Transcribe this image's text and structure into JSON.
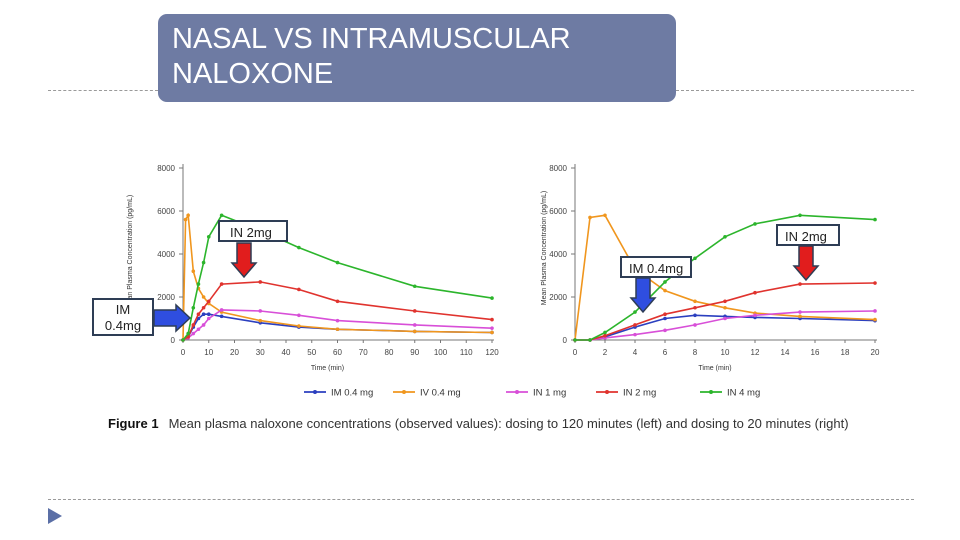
{
  "slide": {
    "title": "NASAL VS INTRAMUSCULAR NALOXONE",
    "callouts": {
      "left_in": "IN 2mg",
      "left_im": "IM 0.4mg",
      "right_in": "IN 2mg",
      "right_im": "IM 0.4mg"
    },
    "caption": {
      "label": "Figure 1",
      "text": "Mean plasma naloxone concentrations (observed values): dosing to 120 minutes (left) and dosing to 20 minutes (right)"
    },
    "colors": {
      "title_bg": "#6e7ba3",
      "red_arrow": "#e11d1d",
      "blue_arrow": "#2f4ee0"
    }
  },
  "chart_data": [
    {
      "type": "line",
      "xlabel": "Time (min)",
      "ylabel": "Mean Plasma Concentration (pg/mL)",
      "xlim": [
        0,
        120
      ],
      "ylim": [
        0,
        8000
      ],
      "xticks": [
        0,
        10,
        20,
        30,
        40,
        50,
        60,
        70,
        80,
        90,
        100,
        110,
        120
      ],
      "yticks": [
        0,
        2000,
        4000,
        6000,
        8000
      ],
      "legend": "bottom",
      "series": [
        {
          "name": "IM 0.4 mg",
          "color": "#2b3fbf",
          "points": [
            [
              0,
              0
            ],
            [
              2,
              150
            ],
            [
              4,
              600
            ],
            [
              6,
              1000
            ],
            [
              8,
              1200
            ],
            [
              10,
              1200
            ],
            [
              15,
              1100
            ],
            [
              30,
              800
            ],
            [
              45,
              600
            ],
            [
              60,
              500
            ],
            [
              90,
              400
            ],
            [
              120,
              350
            ]
          ]
        },
        {
          "name": "IV 0.4 mg",
          "color": "#f0961e",
          "points": [
            [
              0,
              0
            ],
            [
              1,
              5600
            ],
            [
              2,
              5800
            ],
            [
              4,
              3200
            ],
            [
              6,
              2400
            ],
            [
              8,
              2000
            ],
            [
              10,
              1700
            ],
            [
              15,
              1300
            ],
            [
              30,
              900
            ],
            [
              45,
              650
            ],
            [
              60,
              500
            ],
            [
              90,
              400
            ],
            [
              120,
              350
            ]
          ]
        },
        {
          "name": "IN 1 mg",
          "color": "#d84fd8",
          "points": [
            [
              0,
              0
            ],
            [
              2,
              100
            ],
            [
              4,
              300
            ],
            [
              6,
              500
            ],
            [
              8,
              700
            ],
            [
              10,
              1000
            ],
            [
              15,
              1400
            ],
            [
              30,
              1350
            ],
            [
              45,
              1150
            ],
            [
              60,
              900
            ],
            [
              90,
              700
            ],
            [
              120,
              550
            ]
          ]
        },
        {
          "name": "IN 2 mg",
          "color": "#e0332e",
          "points": [
            [
              0,
              0
            ],
            [
              2,
              150
            ],
            [
              4,
              700
            ],
            [
              6,
              1200
            ],
            [
              8,
              1500
            ],
            [
              10,
              1800
            ],
            [
              15,
              2600
            ],
            [
              30,
              2700
            ],
            [
              45,
              2350
            ],
            [
              60,
              1800
            ],
            [
              90,
              1350
            ],
            [
              120,
              950
            ]
          ]
        },
        {
          "name": "IN 4 mg",
          "color": "#2cb52c",
          "points": [
            [
              0,
              0
            ],
            [
              2,
              300
            ],
            [
              4,
              1500
            ],
            [
              6,
              2600
            ],
            [
              8,
              3600
            ],
            [
              10,
              4800
            ],
            [
              15,
              5800
            ],
            [
              30,
              5100
            ],
            [
              45,
              4300
            ],
            [
              60,
              3600
            ],
            [
              90,
              2500
            ],
            [
              120,
              1950
            ]
          ]
        }
      ]
    },
    {
      "type": "line",
      "xlabel": "Time (min)",
      "ylabel": "Mean Plasma Concentration (pg/mL)",
      "xlim": [
        0,
        20
      ],
      "ylim": [
        0,
        8000
      ],
      "xticks": [
        0,
        2,
        4,
        6,
        8,
        10,
        12,
        14,
        16,
        18,
        20
      ],
      "yticks": [
        0,
        2000,
        4000,
        6000,
        8000
      ],
      "legend": "bottom",
      "series": [
        {
          "name": "IM 0.4 mg",
          "color": "#2b3fbf",
          "points": [
            [
              0,
              0
            ],
            [
              1,
              0
            ],
            [
              2,
              150
            ],
            [
              4,
              600
            ],
            [
              6,
              1000
            ],
            [
              8,
              1150
            ],
            [
              10,
              1100
            ],
            [
              12,
              1050
            ],
            [
              15,
              1000
            ],
            [
              20,
              900
            ]
          ]
        },
        {
          "name": "IV 0.4 mg",
          "color": "#f0961e",
          "points": [
            [
              0,
              0
            ],
            [
              1,
              5700
            ],
            [
              2,
              5800
            ],
            [
              4,
              3300
            ],
            [
              6,
              2300
            ],
            [
              8,
              1800
            ],
            [
              10,
              1500
            ],
            [
              12,
              1250
            ],
            [
              15,
              1100
            ],
            [
              20,
              950
            ]
          ]
        },
        {
          "name": "IN 1 mg",
          "color": "#d84fd8",
          "points": [
            [
              0,
              0
            ],
            [
              1,
              0
            ],
            [
              2,
              100
            ],
            [
              4,
              250
            ],
            [
              6,
              450
            ],
            [
              8,
              700
            ],
            [
              10,
              1000
            ],
            [
              12,
              1150
            ],
            [
              15,
              1300
            ],
            [
              20,
              1350
            ]
          ]
        },
        {
          "name": "IN 2 mg",
          "color": "#e0332e",
          "points": [
            [
              0,
              0
            ],
            [
              1,
              0
            ],
            [
              2,
              200
            ],
            [
              4,
              700
            ],
            [
              6,
              1200
            ],
            [
              8,
              1500
            ],
            [
              10,
              1800
            ],
            [
              12,
              2200
            ],
            [
              15,
              2600
            ],
            [
              20,
              2650
            ]
          ]
        },
        {
          "name": "IN 4 mg",
          "color": "#2cb52c",
          "points": [
            [
              0,
              0
            ],
            [
              1,
              0
            ],
            [
              2,
              350
            ],
            [
              4,
              1300
            ],
            [
              6,
              2700
            ],
            [
              8,
              3800
            ],
            [
              10,
              4800
            ],
            [
              12,
              5400
            ],
            [
              15,
              5800
            ],
            [
              20,
              5600
            ]
          ]
        }
      ]
    }
  ]
}
